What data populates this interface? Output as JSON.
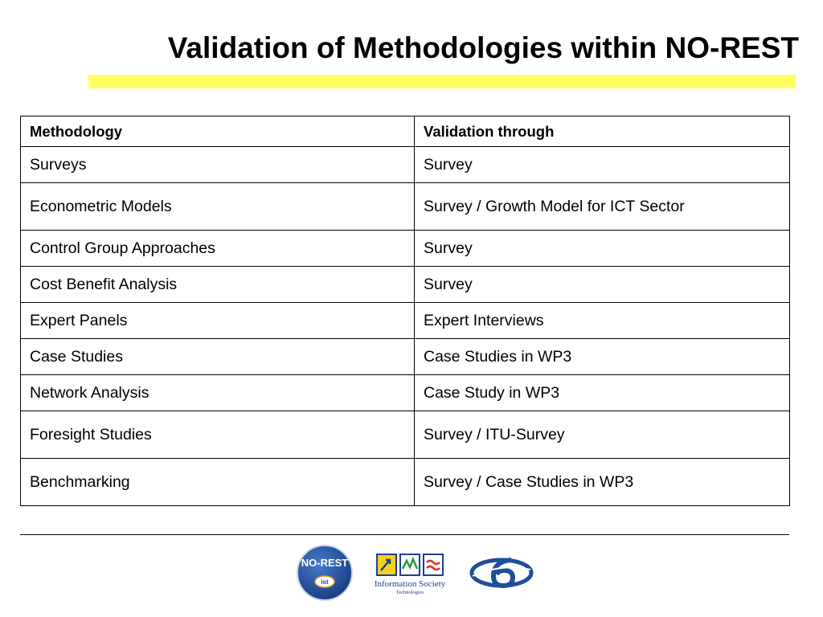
{
  "slide": {
    "title": "Validation of Methodologies within NO-REST",
    "accent_color": "#ffff66"
  },
  "table": {
    "headers": [
      "Methodology",
      "Validation through"
    ],
    "rows": [
      [
        "Surveys",
        "Survey"
      ],
      [
        "Econometric Models",
        "Survey / Growth Model for ICT Sector"
      ],
      [
        "Control Group Approaches",
        "Survey"
      ],
      [
        "Cost Benefit Analysis",
        "Survey"
      ],
      [
        "Expert Panels",
        "Expert Interviews"
      ],
      [
        "Case Studies",
        "Case Studies in WP3"
      ],
      [
        "Network Analysis",
        "Case Study in WP3"
      ],
      [
        "Foresight Studies",
        "Survey / ITU-Survey"
      ],
      [
        "Benchmarking",
        "Survey / Case Studies in WP3"
      ]
    ]
  },
  "footer": {
    "logos": {
      "norest": {
        "text": "NO-REST",
        "badge": "ist",
        "color": "#1f4e9a"
      },
      "ist": {
        "name": "Information Society",
        "sub": "Technologies",
        "color": "#1f3f8f"
      },
      "fp6": {
        "icon": "fp6-logo",
        "color": "#1f4e9a"
      }
    }
  }
}
